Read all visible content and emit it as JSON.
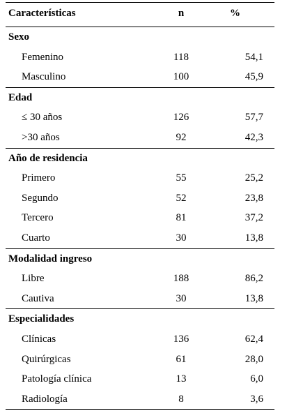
{
  "header": {
    "col_characteristics": "Características",
    "col_n": "n",
    "col_pct": "%"
  },
  "groups": [
    {
      "title": "Sexo",
      "rows": [
        {
          "label": "Femenino",
          "n": "118",
          "pct": "54,1"
        },
        {
          "label": "Masculino",
          "n": "100",
          "pct": "45,9"
        }
      ]
    },
    {
      "title": "Edad",
      "rows": [
        {
          "label": "≤ 30 años",
          "n": "126",
          "pct": "57,7"
        },
        {
          "label": ">30 años",
          "n": "92",
          "pct": "42,3"
        }
      ]
    },
    {
      "title": "Año de residencia",
      "rows": [
        {
          "label": "Primero",
          "n": "55",
          "pct": "25,2"
        },
        {
          "label": "Segundo",
          "n": "52",
          "pct": "23,8"
        },
        {
          "label": "Tercero",
          "n": "81",
          "pct": "37,2"
        },
        {
          "label": "Cuarto",
          "n": "30",
          "pct": "13,8"
        }
      ]
    },
    {
      "title": "Modalidad ingreso",
      "rows": [
        {
          "label": "Libre",
          "n": "188",
          "pct": "86,2"
        },
        {
          "label": "Cautiva",
          "n": "30",
          "pct": "13,8"
        }
      ]
    },
    {
      "title": "Especialidades",
      "rows": [
        {
          "label": "Clínicas",
          "n": "136",
          "pct": "62,4"
        },
        {
          "label": "Quirúrgicas",
          "n": "61",
          "pct": "28,0"
        },
        {
          "label": "Patología clínica",
          "n": "13",
          "pct": "6,0"
        },
        {
          "label": "Radiología",
          "n": "8",
          "pct": "3,6"
        }
      ]
    }
  ]
}
